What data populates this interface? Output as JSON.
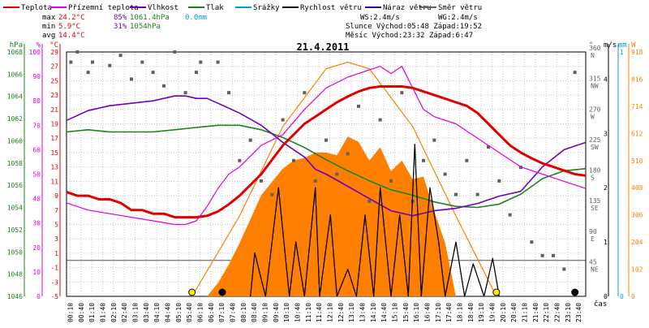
{
  "header": {
    "legend": [
      {
        "label": "Teplota",
        "color": "#e00000"
      },
      {
        "label": "Přízemní teplota",
        "color": "#e000e0"
      },
      {
        "label": "Vlhkost",
        "color": "#7000c0"
      },
      {
        "label": "Tlak",
        "color": "#208020"
      },
      {
        "label": "Srážky",
        "color": "#00a0d0"
      },
      {
        "label": "Rychlost větru",
        "color": "#000000"
      },
      {
        "label": "Náraz větru",
        "color": "#300090"
      },
      {
        "label": "Směr větru",
        "color": "#606060"
      }
    ],
    "stats": {
      "max_label": "max",
      "max_temp": "24.2°C",
      "max_hum": "85%",
      "max_press": "1061.4hPa",
      "max_rain": "0.0mm",
      "min_label": "min",
      "min_temp": "5.9°C",
      "min_hum": "31%",
      "min_press": "1054hPa",
      "avg_label": "avg",
      "avg_temp": "14.4°C"
    },
    "astro": {
      "ws": "WS:2.4m/s",
      "wg": "WG:2.4m/s",
      "sun": "Slunce Východ:05:48  Západ:19:52",
      "moon": "Měsíc  Východ:23:32  Západ:6:47"
    }
  },
  "colors": {
    "temp": "#e00000",
    "feels": "#e000e0",
    "hum": "#7000c0",
    "press": "#208020",
    "rain": "#00a0d0",
    "wind": "#000000",
    "gust": "#300090",
    "dir": "#606060",
    "sun_fill": "#ff7f00",
    "sun_curve": "#ff8000",
    "axis_hpa": "#208020",
    "axis_pct": "#e000e0",
    "axis_c": "#e00000",
    "axis_ms": "#00a0d0",
    "axis_wm": "#ff8000"
  },
  "chart_data": {
    "type": "line",
    "title": "21.4.2011",
    "x_unit": "čas",
    "x_ticks": [
      "00:10",
      "00:40",
      "01:10",
      "01:40",
      "02:10",
      "02:40",
      "03:10",
      "03:40",
      "04:10",
      "04:40",
      "05:10",
      "05:40",
      "06:10",
      "06:40",
      "07:10",
      "07:40",
      "08:10",
      "08:40",
      "09:10",
      "09:40",
      "10:10",
      "10:40",
      "11:10",
      "11:40",
      "12:10",
      "12:40",
      "13:10",
      "13:40",
      "14:10",
      "14:40",
      "15:10",
      "15:40",
      "16:10",
      "16:40",
      "17:10",
      "17:40",
      "18:10",
      "18:40",
      "19:10",
      "19:40",
      "20:10",
      "20:40",
      "21:10",
      "21:40",
      "22:10",
      "22:40",
      "23:10",
      "23:40"
    ],
    "axes": {
      "hpa": {
        "label": "hPa",
        "ticks": [
          1068,
          1066,
          1064,
          1062,
          1060,
          1058,
          1056,
          1054,
          1052,
          1050,
          1048,
          1046
        ],
        "range": [
          1046,
          1068
        ]
      },
      "pct": {
        "label": "%",
        "ticks": [
          100,
          90,
          80,
          70,
          60,
          50,
          40,
          30,
          20,
          10,
          0
        ],
        "range": [
          0,
          100
        ]
      },
      "c": {
        "label": "°C",
        "ticks": [
          29,
          27,
          25,
          23,
          21,
          19,
          17,
          15,
          13,
          11,
          9,
          7,
          5,
          3,
          1,
          -1,
          -3,
          -5
        ],
        "range": [
          -5,
          29
        ]
      },
      "dir": {
        "label": "°",
        "ticks": [
          {
            "v": 360,
            "l": "360",
            "d": "N"
          },
          {
            "v": 315,
            "l": "315",
            "d": "NW"
          },
          {
            "v": 270,
            "l": "270",
            "d": "W"
          },
          {
            "v": 225,
            "l": "225",
            "d": "SW"
          },
          {
            "v": 180,
            "l": "180",
            "d": "S"
          },
          {
            "v": 135,
            "l": "135",
            "d": "SE"
          },
          {
            "v": 90,
            "l": "90",
            "d": "E"
          },
          {
            "v": 45,
            "l": "45",
            "d": "NE"
          }
        ],
        "range": [
          0,
          360
        ]
      },
      "ms": {
        "label": "m/s",
        "ticks": [
          4,
          3,
          2,
          1,
          0
        ],
        "range": [
          0,
          4.5
        ]
      },
      "mm": {
        "label": "mm",
        "ticks": [
          1,
          0
        ],
        "range": [
          0,
          1
        ]
      },
      "wm": {
        "label": "W",
        "ticks": [
          918,
          816,
          714,
          612,
          510,
          408,
          306,
          204,
          102,
          0
        ],
        "range": [
          0,
          918
        ]
      }
    },
    "series": [
      {
        "name": "Teplota",
        "axis": "c",
        "x": [
          0,
          0.5,
          1,
          1.5,
          2,
          2.5,
          3,
          3.5,
          4,
          4.5,
          5,
          5.5,
          6,
          6.5,
          7,
          7.5,
          8,
          8.5,
          9,
          9.5,
          10,
          10.5,
          11,
          11.5,
          12,
          12.5,
          13,
          13.5,
          14,
          14.5,
          15,
          15.5,
          16,
          16.5,
          17,
          17.5,
          18,
          18.5,
          19,
          19.5,
          20,
          20.5,
          21,
          21.5,
          22,
          22.5,
          23,
          23.5,
          24
        ],
        "y": [
          9.5,
          9,
          9,
          8.5,
          8.5,
          8,
          7,
          7,
          6.5,
          6.5,
          6,
          6,
          6,
          6.2,
          6.8,
          7.8,
          9,
          10.5,
          12,
          14,
          16,
          17.5,
          19,
          20,
          21,
          22,
          22.8,
          23.5,
          24,
          24.2,
          24.2,
          24.2,
          24,
          23.5,
          23,
          22.5,
          22,
          21.5,
          20.5,
          19,
          17.5,
          16,
          15,
          14.2,
          13.5,
          13,
          12.5,
          12,
          11.8
        ]
      },
      {
        "name": "Přízemní teplota",
        "axis": "c",
        "x": [
          0,
          1,
          2,
          3,
          4,
          5,
          5.5,
          6,
          6.5,
          7,
          7.5,
          8,
          9,
          10,
          11,
          12,
          13,
          14,
          14.5,
          15,
          15.5,
          16,
          16.5,
          17,
          18,
          19,
          20,
          21,
          22,
          23,
          24
        ],
        "y": [
          8,
          7,
          6.5,
          6,
          5.5,
          5,
          5,
          5.5,
          7.5,
          10,
          12,
          13,
          16,
          17.5,
          21,
          24,
          25.5,
          26.5,
          27,
          26,
          27,
          24,
          21,
          20,
          19,
          17,
          15,
          13,
          12,
          11,
          10
        ]
      },
      {
        "name": "Vlhkost",
        "axis": "pct",
        "x": [
          0,
          1,
          2,
          3,
          4,
          5,
          5.5,
          6,
          6.5,
          7,
          8,
          9,
          10,
          10.5,
          11,
          11.5,
          12,
          13,
          14,
          15,
          16,
          17,
          18,
          19,
          20,
          21,
          22,
          23,
          24
        ],
        "y": [
          72,
          76,
          78,
          79,
          80,
          82,
          82,
          81,
          81,
          79,
          75,
          70,
          63,
          60,
          57,
          52,
          50,
          45,
          40,
          35,
          33,
          35,
          36,
          38,
          41,
          43,
          53,
          60,
          63
        ]
      },
      {
        "name": "Tlak",
        "axis": "hpa",
        "x": [
          0,
          1,
          2,
          3,
          4,
          5,
          6,
          7,
          8,
          9,
          10,
          11,
          12,
          13,
          14,
          15,
          16,
          17,
          18,
          19,
          20,
          21,
          22,
          23,
          24
        ],
        "y": [
          1060.8,
          1061,
          1060.8,
          1060.8,
          1060.8,
          1061,
          1061.2,
          1061.4,
          1061.4,
          1061,
          1060.3,
          1059.4,
          1058.3,
          1057.3,
          1056.4,
          1055.6,
          1055.1,
          1054.5,
          1054.1,
          1054,
          1054.3,
          1055.2,
          1056.6,
          1057.3,
          1057.5
        ]
      },
      {
        "name": "Slunce",
        "axis": "wm",
        "x": [
          5.8,
          8,
          10,
          12,
          13,
          14,
          16,
          18,
          19.87
        ],
        "y": [
          0,
          302,
          638,
          855,
          880,
          855,
          638,
          302,
          0
        ]
      },
      {
        "name": "Sluneční záření",
        "axis": "wm",
        "x": [
          6.5,
          7,
          7.5,
          8,
          8.5,
          9,
          9.5,
          10,
          10.5,
          11,
          11.5,
          12,
          12.5,
          13,
          13.5,
          14,
          14.5,
          15,
          15.5,
          16,
          16.5,
          17,
          17.5,
          18
        ],
        "y": [
          0,
          50,
          120,
          200,
          290,
          380,
          430,
          480,
          510,
          520,
          540,
          540,
          530,
          600,
          580,
          510,
          560,
          470,
          510,
          440,
          450,
          320,
          200,
          0
        ]
      },
      {
        "name": "Rychlost větru",
        "axis": "ms",
        "x": [
          8.5,
          8.7,
          9.2,
          9.5,
          9.8,
          10.3,
          10.6,
          11,
          11.5,
          11.7,
          12.2,
          12.5,
          13,
          13.4,
          13.8,
          14.2,
          14.5,
          15,
          15.4,
          15.8,
          16.1,
          16.4,
          16.8,
          17.2,
          17.5,
          18,
          18.4,
          18.8,
          19.3,
          19.7,
          20
        ],
        "y": [
          0,
          0.8,
          0,
          1,
          2,
          0,
          1,
          0,
          2,
          0,
          1.5,
          0,
          0.5,
          0,
          1.5,
          0,
          2,
          0,
          1.5,
          0,
          2.8,
          0,
          2,
          1,
          0,
          1,
          0,
          0.6,
          0,
          0.7,
          0
        ]
      },
      {
        "name": "Náraz větru",
        "axis": "ms",
        "x": [
          8.5,
          8.7,
          9.2,
          9.5,
          9.8,
          10.3,
          10.6,
          11,
          11.5,
          11.7,
          12.2,
          12.5,
          13,
          13.4,
          13.8,
          14.2,
          14.5,
          15,
          15.4,
          15.8,
          16.1,
          16.4,
          16.8,
          17.2,
          17.5,
          18,
          18.4,
          18.8,
          19.3,
          19.7,
          20
        ],
        "y": [
          0,
          0.8,
          0,
          1,
          2,
          0,
          1,
          0,
          2,
          0,
          1.5,
          0,
          0.5,
          0,
          1.5,
          0,
          2,
          0,
          1.5,
          0,
          2.8,
          0,
          2,
          1,
          0,
          1,
          0,
          0.6,
          0,
          0.7,
          0
        ]
      },
      {
        "name": "Směr větru",
        "axis": "dir",
        "x": [
          0.2,
          0.5,
          1,
          1.2,
          2,
          2.5,
          3,
          3.5,
          4,
          4.5,
          5,
          5.5,
          6,
          6.2,
          7,
          7.5,
          8,
          8.5,
          9,
          9.5,
          10,
          10.5,
          11,
          11.5,
          12,
          12.5,
          13,
          13.5,
          14,
          14.5,
          15,
          15.5,
          16,
          16.5,
          17,
          17.5,
          18,
          18.5,
          19,
          19.5,
          20,
          20.5,
          21,
          21.5,
          22,
          22.5,
          23,
          23.5
        ],
        "y": [
          345,
          360,
          330,
          345,
          340,
          355,
          320,
          345,
          330,
          310,
          360,
          300,
          330,
          345,
          345,
          300,
          200,
          230,
          170,
          150,
          260,
          200,
          300,
          170,
          230,
          180,
          210,
          280,
          140,
          260,
          170,
          300,
          140,
          200,
          230,
          180,
          150,
          200,
          150,
          220,
          170,
          120,
          190,
          80,
          60,
          60,
          40,
          330
        ]
      }
    ]
  }
}
